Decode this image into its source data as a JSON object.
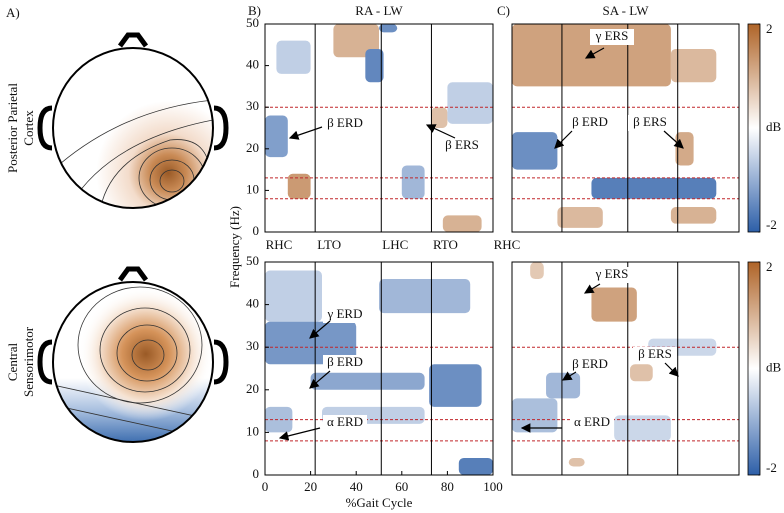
{
  "panel_labels": [
    "A)",
    "B)",
    "C)"
  ],
  "row_labels": [
    [
      "Posterior Parietal",
      "Cortex"
    ],
    [
      "Central",
      "Sensorimotor"
    ]
  ],
  "gait_events": {
    "labels": [
      "RHC",
      "LTO",
      "LHC",
      "RTO",
      "RHC"
    ],
    "x": [
      0,
      22,
      51,
      73,
      100
    ]
  },
  "chart_data": [
    {
      "type": "heatmap",
      "title": "RA - LW",
      "xlim": [
        0,
        100
      ],
      "ylim": [
        0,
        50
      ],
      "yticks": [
        0,
        10,
        20,
        30,
        40,
        50
      ],
      "band_lines": [
        8,
        13,
        30,
        50
      ],
      "annotations": [
        "β ERD",
        "β ERS"
      ],
      "blobs": [
        {
          "gait": [
            30,
            50
          ],
          "freq": [
            42,
            50
          ],
          "db": 1.0
        },
        {
          "gait": [
            44,
            52
          ],
          "freq": [
            36,
            44
          ],
          "db": -1.5
        },
        {
          "gait": [
            0,
            10
          ],
          "freq": [
            18,
            28
          ],
          "db": -1.2
        },
        {
          "gait": [
            10,
            20
          ],
          "freq": [
            8,
            14
          ],
          "db": 1.3
        },
        {
          "gait": [
            60,
            70
          ],
          "freq": [
            8,
            16
          ],
          "db": -0.9
        },
        {
          "gait": [
            78,
            95
          ],
          "freq": [
            0,
            4
          ],
          "db": 1.0
        },
        {
          "gait": [
            73,
            80
          ],
          "freq": [
            25,
            30
          ],
          "db": 0.8
        },
        {
          "gait": [
            80,
            100
          ],
          "freq": [
            26,
            36
          ],
          "db": -0.6
        },
        {
          "gait": [
            50,
            58
          ],
          "freq": [
            48,
            50
          ],
          "db": -1.4
        },
        {
          "gait": [
            5,
            20
          ],
          "freq": [
            38,
            46
          ],
          "db": -0.6
        }
      ]
    },
    {
      "type": "heatmap",
      "title": "SA - LW",
      "xlim": [
        0,
        100
      ],
      "ylim": [
        0,
        50
      ],
      "band_lines": [
        8,
        13,
        30,
        50
      ],
      "annotations": [
        "γ ERS",
        "β ERD",
        "β ERS"
      ],
      "colorbar": {
        "lim": [
          -2,
          2
        ],
        "ticks": [
          -2,
          2
        ],
        "label": "dB"
      },
      "blobs": [
        {
          "gait": [
            0,
            70
          ],
          "freq": [
            35,
            50
          ],
          "db": 1.2
        },
        {
          "gait": [
            70,
            90
          ],
          "freq": [
            36,
            44
          ],
          "db": 0.9
        },
        {
          "gait": [
            0,
            20
          ],
          "freq": [
            15,
            24
          ],
          "db": -1.4
        },
        {
          "gait": [
            72,
            80
          ],
          "freq": [
            16,
            24
          ],
          "db": 1.1
        },
        {
          "gait": [
            35,
            90
          ],
          "freq": [
            8,
            13
          ],
          "db": -1.6
        },
        {
          "gait": [
            70,
            90
          ],
          "freq": [
            2,
            6
          ],
          "db": 1.0
        },
        {
          "gait": [
            20,
            40
          ],
          "freq": [
            1,
            6
          ],
          "db": 0.9
        }
      ]
    },
    {
      "type": "heatmap",
      "xlim": [
        0,
        100
      ],
      "ylim": [
        0,
        50
      ],
      "xticks": [
        0,
        20,
        40,
        60,
        80,
        100
      ],
      "yticks": [
        0,
        10,
        20,
        30,
        40,
        50
      ],
      "band_lines": [
        8,
        13,
        30,
        50
      ],
      "xlabel": "%Gait Cycle",
      "ylabel": "Frequency (Hz)",
      "annotations": [
        "γ ERD",
        "β ERD",
        "α ERD"
      ],
      "blobs": [
        {
          "gait": [
            0,
            40
          ],
          "freq": [
            26,
            36
          ],
          "db": -1.3
        },
        {
          "gait": [
            20,
            70
          ],
          "freq": [
            20,
            24
          ],
          "db": -1.1
        },
        {
          "gait": [
            72,
            95
          ],
          "freq": [
            16,
            26
          ],
          "db": -1.4
        },
        {
          "gait": [
            0,
            25
          ],
          "freq": [
            36,
            48
          ],
          "db": -0.6
        },
        {
          "gait": [
            50,
            90
          ],
          "freq": [
            38,
            46
          ],
          "db": -0.9
        },
        {
          "gait": [
            0,
            12
          ],
          "freq": [
            10,
            16
          ],
          "db": -0.8
        },
        {
          "gait": [
            85,
            100
          ],
          "freq": [
            0,
            4
          ],
          "db": -1.6
        },
        {
          "gait": [
            25,
            70
          ],
          "freq": [
            12,
            16
          ],
          "db": -0.6
        }
      ]
    },
    {
      "type": "heatmap",
      "xlim": [
        0,
        100
      ],
      "ylim": [
        0,
        50
      ],
      "band_lines": [
        8,
        13,
        30,
        50
      ],
      "annotations": [
        "γ ERS",
        "β ERD",
        "β ERS",
        "α ERD"
      ],
      "colorbar": {
        "lim": [
          -2,
          2
        ],
        "ticks": [
          -2,
          2
        ],
        "label": "dB"
      },
      "blobs": [
        {
          "gait": [
            35,
            55
          ],
          "freq": [
            36,
            44
          ],
          "db": 1.2
        },
        {
          "gait": [
            0,
            20
          ],
          "freq": [
            10,
            18
          ],
          "db": -0.8
        },
        {
          "gait": [
            15,
            30
          ],
          "freq": [
            18,
            24
          ],
          "db": -0.9
        },
        {
          "gait": [
            52,
            62
          ],
          "freq": [
            22,
            26
          ],
          "db": 0.8
        },
        {
          "gait": [
            8,
            14
          ],
          "freq": [
            46,
            50
          ],
          "db": 0.7
        },
        {
          "gait": [
            60,
            90
          ],
          "freq": [
            28,
            32
          ],
          "db": -0.5
        },
        {
          "gait": [
            45,
            70
          ],
          "freq": [
            8,
            14
          ],
          "db": -0.5
        },
        {
          "gait": [
            25,
            32
          ],
          "freq": [
            2,
            4
          ],
          "db": 0.8
        }
      ]
    }
  ]
}
